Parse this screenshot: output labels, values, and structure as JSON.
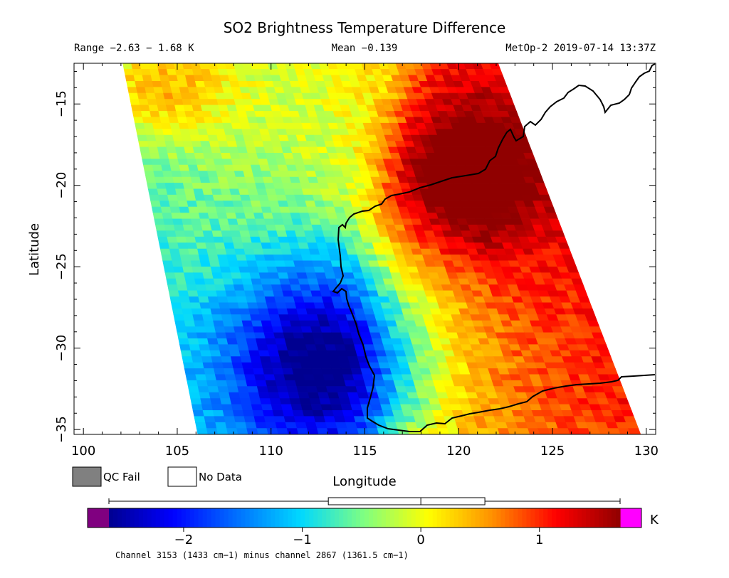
{
  "chart_data": {
    "type": "heatmap",
    "title": "SO2 Brightness Temperature Difference",
    "header": {
      "range": "Range −2.63 − 1.68 K",
      "mean": "Mean −0.139",
      "satellite_time": "MetOp-2 2019-07-14 13:37Z"
    },
    "xlabel": "Longitude",
    "ylabel": "Latitude",
    "xlim": [
      99.5,
      130.5
    ],
    "ylim": [
      -35.3,
      -12.5
    ],
    "x_ticks": [
      100,
      105,
      110,
      115,
      120,
      125,
      130
    ],
    "y_ticks": [
      -15,
      -20,
      -25,
      -30,
      -35
    ],
    "grid": false,
    "swath_edges": {
      "west": [
        [
          102.1,
          -12.5
        ],
        [
          106.1,
          -35.3
        ]
      ],
      "east": [
        [
          122.1,
          -12.5
        ],
        [
          129.7,
          -35.3
        ]
      ]
    },
    "field_features": [
      {
        "feature": "minimum",
        "lon": 113.0,
        "lat": -31.0,
        "value": -2.3
      },
      {
        "feature": "maximum",
        "lon": 120.5,
        "lat": -19.5,
        "value": 1.5
      },
      {
        "feature": "maximum",
        "lon": 104.0,
        "lat": -14.0,
        "value": 1.0
      }
    ],
    "colorbar": {
      "min": -2.63,
      "max": 1.68,
      "ticks": [
        -2,
        -1,
        0,
        1
      ],
      "unit": "K",
      "colors": [
        "#000090",
        "#0000ff",
        "#0070ff",
        "#00d8ff",
        "#80ff80",
        "#ffff00",
        "#ff9000",
        "#ff0000",
        "#900000"
      ],
      "underflow_color": "#800080",
      "overflow_color": "#ff00ff",
      "boxplot": {
        "whisker_low": -2.63,
        "q1": -0.78,
        "median": 0.0,
        "q3": 0.54,
        "whisker_high": 1.68
      }
    },
    "legend": [
      {
        "label": "QC Fail",
        "color": "#808080"
      },
      {
        "label": "No Data",
        "color": "#ffffff"
      }
    ],
    "footer": "Channel 3153 (1433 cm−1) minus channel 2867 (1361.5 cm−1)",
    "coastline_visible": true
  }
}
